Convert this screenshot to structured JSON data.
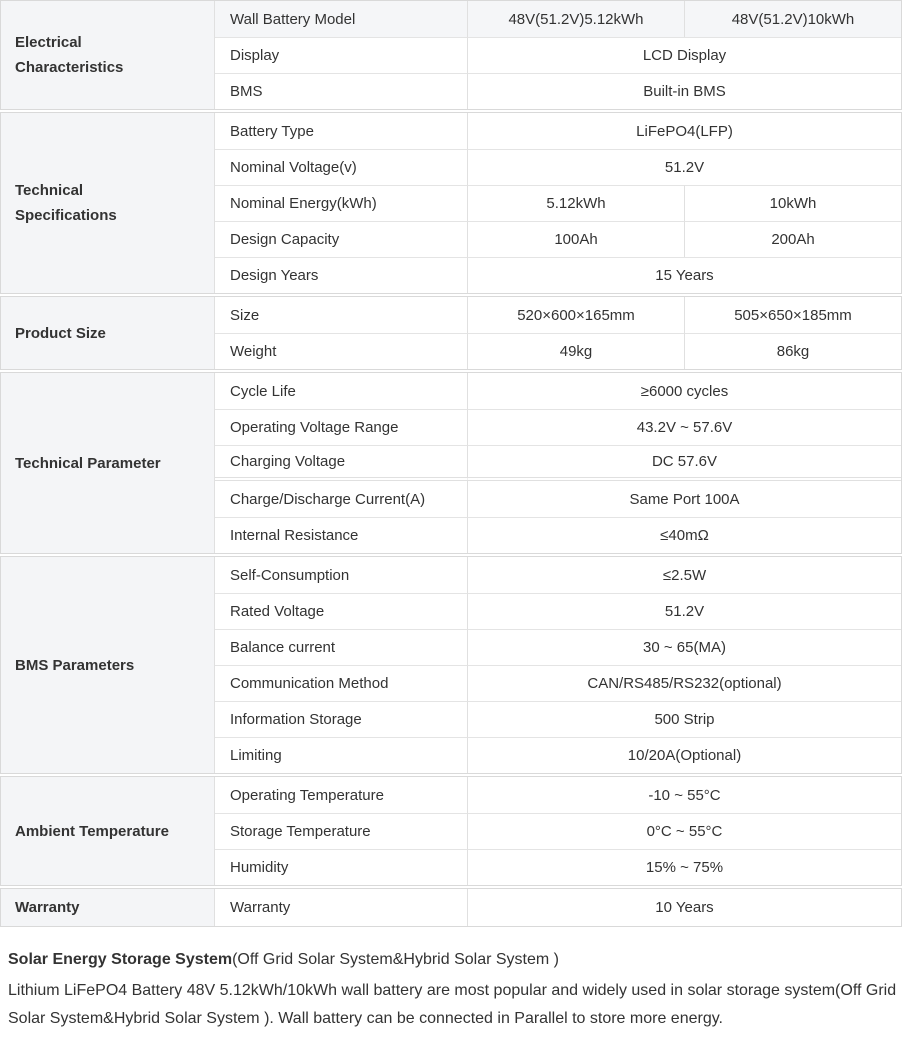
{
  "colors": {
    "category_bg": "#f4f5f7",
    "header_row_bg": "#f5f6f8",
    "border": "#d9d9d9",
    "inner_border": "#e0e0e0",
    "text": "#333333"
  },
  "table": {
    "sections": [
      {
        "category": "Electrical\nCharacteristics",
        "rows": [
          {
            "param": "Wall Battery Model",
            "values": [
              "48V(51.2V)5.12kWh",
              "48V(51.2V)10kWh"
            ],
            "header": true
          },
          {
            "param": "Display",
            "value": "LCD Display"
          },
          {
            "param": "BMS",
            "value": "Built-in BMS"
          }
        ]
      },
      {
        "category": "Technical\nSpecifications",
        "rows": [
          {
            "param": "Battery Type",
            "value": "LiFePO4(LFP)"
          },
          {
            "param": "Nominal Voltage(v)",
            "value": "51.2V"
          },
          {
            "param": "Nominal Energy(kWh)",
            "values": [
              "5.12kWh",
              "10kWh"
            ]
          },
          {
            "param": "Design Capacity",
            "values": [
              "100Ah",
              "200Ah"
            ]
          },
          {
            "param": "Design Years",
            "value": "15 Years"
          }
        ]
      },
      {
        "category": "Product Size",
        "rows": [
          {
            "param": "Size",
            "values": [
              "520×600×165mm",
              "505×650×185mm"
            ]
          },
          {
            "param": "Weight",
            "values": [
              "49kg",
              "86kg"
            ]
          }
        ]
      },
      {
        "category": "Technical Parameter",
        "rows": [
          {
            "param": "Cycle Life",
            "value": "≥6000 cycles"
          },
          {
            "param": "Operating Voltage Range",
            "value": "43.2V ~ 57.6V"
          },
          {
            "param": "Charging Voltage",
            "value": "DC 57.6V",
            "divider_after": true
          },
          {
            "param": "Charge/Discharge Current(A)",
            "value": "Same Port 100A"
          },
          {
            "param": "Internal Resistance",
            "value": "≤40mΩ"
          }
        ]
      },
      {
        "category": "BMS Parameters",
        "rows": [
          {
            "param": "Self-Consumption",
            "value": "≤2.5W"
          },
          {
            "param": "Rated Voltage",
            "value": "51.2V"
          },
          {
            "param": "Balance current",
            "value": "30 ~ 65(MA)"
          },
          {
            "param": "Communication Method",
            "value": "CAN/RS485/RS232(optional)"
          },
          {
            "param": "Information Storage",
            "value": "500 Strip"
          },
          {
            "param": "Limiting",
            "value": "10/20A(Optional)"
          }
        ]
      },
      {
        "category": "Ambient Temperature",
        "rows": [
          {
            "param": "Operating Temperature",
            "value": "-10 ~ 55°C"
          },
          {
            "param": "Storage Temperature",
            "value": "0°C ~ 55°C"
          },
          {
            "param": "Humidity",
            "value": "15% ~ 75%"
          }
        ]
      },
      {
        "category": "Warranty",
        "rows": [
          {
            "param": "Warranty",
            "value": "10 Years"
          }
        ]
      }
    ]
  },
  "footer": {
    "heading_bold": "Solar Energy Storage System",
    "heading_rest": "(Off Grid Solar System&Hybrid Solar System )",
    "body": "Lithium LiFePO4 Battery 48V 5.12kWh/10kWh wall battery are most popular and widely used in solar storage system(Off Grid Solar System&Hybrid Solar System ). Wall battery can be connected in Parallel to store more energy."
  }
}
